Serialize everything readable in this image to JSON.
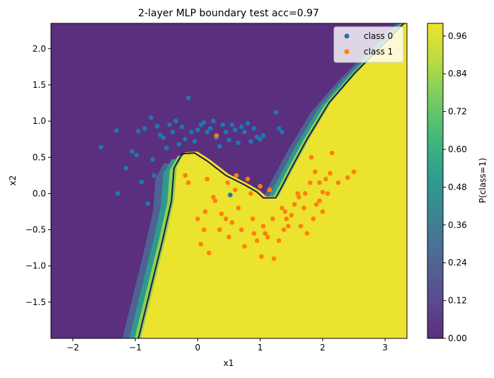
{
  "chart_data": {
    "type": "scatter",
    "title": "2-layer MLP boundary  test acc=0.97",
    "xlabel": "x1",
    "ylabel": "x2",
    "xlim": [
      -2.35,
      3.35
    ],
    "ylim": [
      -2.0,
      2.35
    ],
    "xticks": [
      "−2",
      "−1",
      "0",
      "1",
      "2",
      "3"
    ],
    "xtick_values": [
      -2,
      -1,
      0,
      1,
      2,
      3
    ],
    "yticks": [
      "−1.5",
      "−1.0",
      "−0.5",
      "0.0",
      "0.5",
      "1.0",
      "1.5",
      "2.0"
    ],
    "ytick_values": [
      -1.5,
      -1.0,
      -0.5,
      0.0,
      0.5,
      1.0,
      1.5,
      2.0
    ],
    "grid": false,
    "legend_position": "top-right",
    "colorbar": {
      "label": "P(class=1)",
      "ticks": [
        "0.00",
        "0.12",
        "0.24",
        "0.36",
        "0.48",
        "0.60",
        "0.72",
        "0.84",
        "0.96"
      ],
      "tick_values": [
        0.0,
        0.12,
        0.24,
        0.36,
        0.48,
        0.6,
        0.72,
        0.84,
        0.96
      ],
      "range": [
        0.0,
        1.0
      ],
      "colormap": "viridis"
    },
    "decision_boundary": {
      "probability": 0.5,
      "points": [
        [
          -0.95,
          -2.0
        ],
        [
          -0.75,
          -1.3
        ],
        [
          -0.55,
          -0.6
        ],
        [
          -0.42,
          -0.1
        ],
        [
          -0.38,
          0.35
        ],
        [
          -0.25,
          0.55
        ],
        [
          -0.05,
          0.56
        ],
        [
          0.15,
          0.45
        ],
        [
          0.45,
          0.25
        ],
        [
          0.75,
          0.12
        ],
        [
          0.95,
          0.02
        ],
        [
          1.05,
          -0.06
        ],
        [
          1.25,
          -0.06
        ],
        [
          1.35,
          0.1
        ],
        [
          1.5,
          0.35
        ],
        [
          1.75,
          0.75
        ],
        [
          2.1,
          1.25
        ],
        [
          2.5,
          1.65
        ],
        [
          2.9,
          2.0
        ],
        [
          3.3,
          2.35
        ]
      ],
      "color": "#1e1a4f"
    },
    "series": [
      {
        "name": "class 0",
        "color": "#1f77b4",
        "points": [
          [
            -1.55,
            0.64
          ],
          [
            -1.3,
            0.87
          ],
          [
            -1.28,
            0.0
          ],
          [
            -1.15,
            0.35
          ],
          [
            -1.05,
            0.58
          ],
          [
            -0.98,
            0.53
          ],
          [
            -0.95,
            0.86
          ],
          [
            -0.9,
            0.16
          ],
          [
            -0.85,
            0.9
          ],
          [
            -0.8,
            -0.14
          ],
          [
            -0.75,
            1.05
          ],
          [
            -0.72,
            0.47
          ],
          [
            -0.7,
            0.25
          ],
          [
            -0.65,
            0.93
          ],
          [
            -0.6,
            0.81
          ],
          [
            -0.55,
            0.77
          ],
          [
            -0.5,
            0.63
          ],
          [
            -0.45,
            0.95
          ],
          [
            -0.4,
            0.85
          ],
          [
            -0.35,
            1.0
          ],
          [
            -0.3,
            0.68
          ],
          [
            -0.25,
            0.92
          ],
          [
            -0.2,
            0.75
          ],
          [
            -0.15,
            1.32
          ],
          [
            -0.1,
            0.85
          ],
          [
            -0.05,
            0.72
          ],
          [
            0.0,
            0.88
          ],
          [
            0.05,
            0.95
          ],
          [
            0.1,
            0.98
          ],
          [
            0.15,
            0.85
          ],
          [
            0.2,
            0.9
          ],
          [
            0.25,
            1.0
          ],
          [
            0.3,
            0.77
          ],
          [
            0.35,
            0.65
          ],
          [
            0.4,
            0.95
          ],
          [
            0.45,
            0.85
          ],
          [
            0.5,
            0.74
          ],
          [
            0.55,
            0.95
          ],
          [
            0.6,
            0.88
          ],
          [
            0.65,
            0.7
          ],
          [
            0.7,
            0.92
          ],
          [
            0.75,
            0.85
          ],
          [
            0.8,
            0.97
          ],
          [
            0.85,
            0.72
          ],
          [
            0.9,
            0.9
          ],
          [
            0.95,
            0.78
          ],
          [
            1.0,
            0.75
          ],
          [
            1.05,
            0.8
          ],
          [
            1.25,
            1.12
          ],
          [
            1.3,
            0.9
          ],
          [
            1.35,
            0.85
          ],
          [
            0.52,
            -0.02
          ]
        ]
      },
      {
        "name": "class 1",
        "color": "#ff7f0e",
        "points": [
          [
            -0.2,
            0.25
          ],
          [
            -0.15,
            0.15
          ],
          [
            0.0,
            -0.35
          ],
          [
            0.05,
            -0.7
          ],
          [
            0.1,
            -0.5
          ],
          [
            0.12,
            -0.25
          ],
          [
            0.15,
            0.2
          ],
          [
            0.18,
            -0.82
          ],
          [
            0.25,
            -0.05
          ],
          [
            0.28,
            -0.1
          ],
          [
            0.3,
            0.8
          ],
          [
            0.35,
            -0.5
          ],
          [
            0.38,
            -0.28
          ],
          [
            0.45,
            -0.35
          ],
          [
            0.48,
            0.15
          ],
          [
            0.5,
            -0.6
          ],
          [
            0.55,
            -0.4
          ],
          [
            0.6,
            0.05
          ],
          [
            0.62,
            0.25
          ],
          [
            0.65,
            -0.2
          ],
          [
            0.7,
            -0.5
          ],
          [
            0.75,
            -0.73
          ],
          [
            0.8,
            0.2
          ],
          [
            0.85,
            0.0
          ],
          [
            0.88,
            -0.35
          ],
          [
            0.9,
            -0.55
          ],
          [
            0.95,
            -0.65
          ],
          [
            1.0,
            0.1
          ],
          [
            1.02,
            -0.87
          ],
          [
            1.05,
            -0.45
          ],
          [
            1.08,
            -0.55
          ],
          [
            1.12,
            -0.6
          ],
          [
            1.15,
            0.05
          ],
          [
            1.2,
            -0.35
          ],
          [
            1.22,
            -0.9
          ],
          [
            1.3,
            -0.65
          ],
          [
            1.35,
            -0.2
          ],
          [
            1.38,
            -0.5
          ],
          [
            1.4,
            -0.25
          ],
          [
            1.42,
            -0.35
          ],
          [
            1.45,
            -0.45
          ],
          [
            1.5,
            -0.3
          ],
          [
            1.55,
            -0.15
          ],
          [
            1.6,
            0.0
          ],
          [
            1.65,
            -0.45
          ],
          [
            1.7,
            -0.2
          ],
          [
            1.75,
            -0.55
          ],
          [
            1.8,
            0.15
          ],
          [
            1.82,
            0.5
          ],
          [
            1.85,
            -0.35
          ],
          [
            1.88,
            0.3
          ],
          [
            1.9,
            -0.15
          ],
          [
            1.95,
            0.15
          ],
          [
            2.0,
            -0.25
          ],
          [
            2.05,
            0.2
          ],
          [
            2.08,
            0.0
          ],
          [
            2.12,
            0.28
          ],
          [
            2.15,
            0.56
          ],
          [
            2.25,
            0.15
          ],
          [
            2.4,
            0.22
          ],
          [
            2.5,
            0.3
          ],
          [
            1.62,
            -0.05
          ],
          [
            1.72,
            0.0
          ],
          [
            1.95,
            -0.1
          ],
          [
            2.0,
            0.02
          ]
        ]
      }
    ]
  }
}
